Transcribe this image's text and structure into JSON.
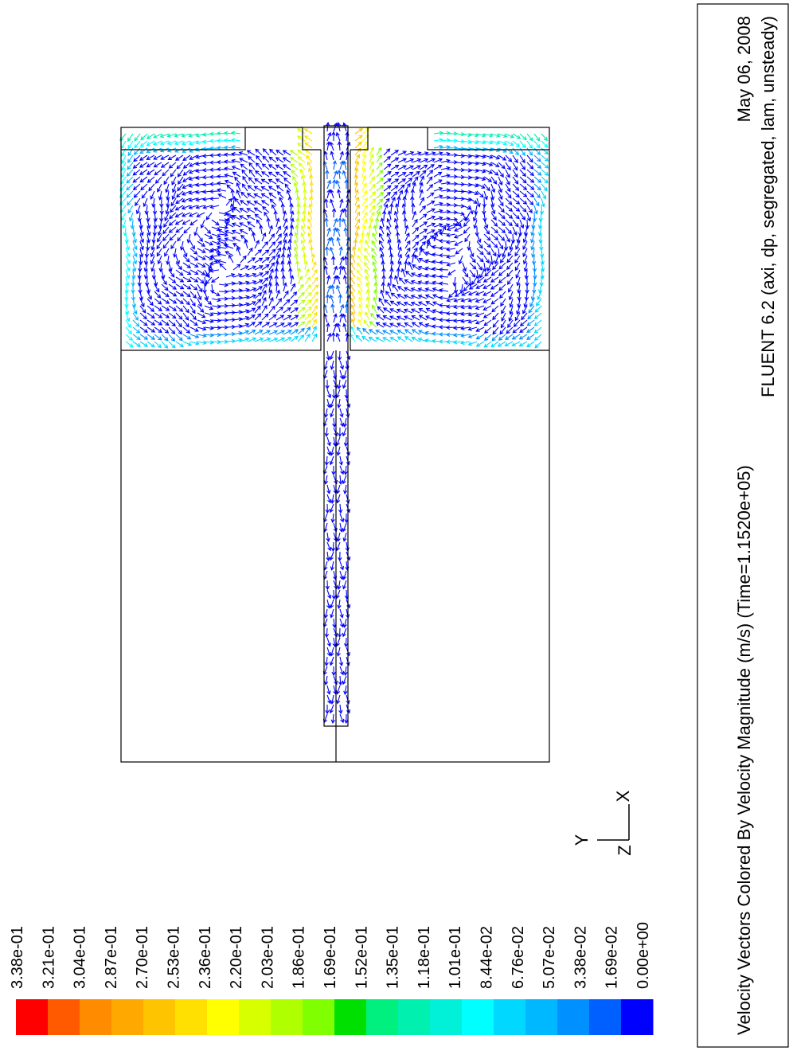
{
  "colorbar": {
    "labels": [
      "3.38e-01",
      "3.21e-01",
      "3.04e-01",
      "2.87e-01",
      "2.70e-01",
      "2.53e-01",
      "2.36e-01",
      "2.20e-01",
      "2.03e-01",
      "1.86e-01",
      "1.69e-01",
      "1.52e-01",
      "1.35e-01",
      "1.18e-01",
      "1.01e-01",
      "8.44e-02",
      "6.76e-02",
      "5.07e-02",
      "3.38e-02",
      "1.69e-02",
      "0.00e+00"
    ],
    "colors": [
      "#ff0000",
      "#ff5a00",
      "#ff8c00",
      "#ffa800",
      "#ffc400",
      "#ffe000",
      "#ffff00",
      "#d8ff00",
      "#b0ff00",
      "#80ff00",
      "#00e000",
      "#00f080",
      "#00f0b0",
      "#00f0d8",
      "#00ffff",
      "#00d8ff",
      "#00b8ff",
      "#0090ff",
      "#0060ff",
      "#0000ff"
    ]
  },
  "axes": {
    "x": "X",
    "y": "Y",
    "z": "Z"
  },
  "caption": {
    "title": "Velocity Vectors Colored By Velocity Magnitude (m/s)  (Time=1.1520e+05)",
    "date": "May 06, 2008",
    "solver": "FLUENT 6.2 (axi, dp, segregated, lam, unsteady)"
  }
}
